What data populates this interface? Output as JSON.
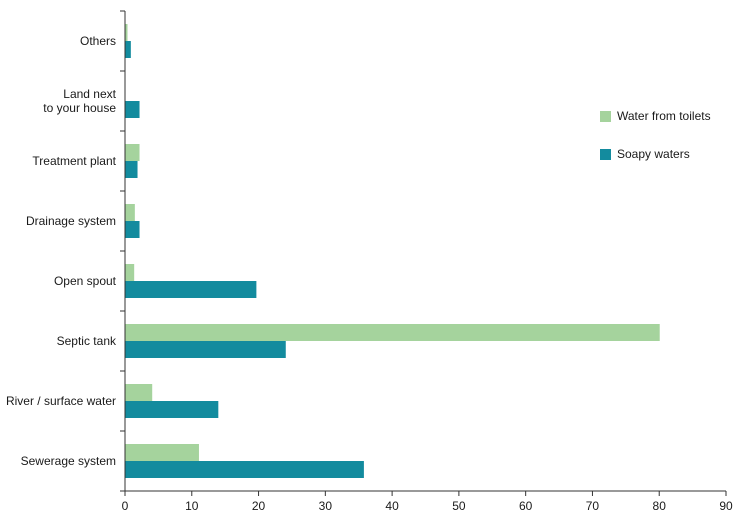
{
  "chart_data": {
    "type": "bar",
    "orientation": "horizontal",
    "categories": [
      "Sewerage system",
      "River / surface water",
      "Septic tank",
      "Open spout",
      "Drainage system",
      "Treatment plant",
      "Land next\nto your house",
      "Others"
    ],
    "series": [
      {
        "name": "Water from toilets",
        "color": "#a5d39d",
        "values": [
          11,
          4,
          80,
          1.3,
          1.4,
          2.1,
          0,
          0.3
        ]
      },
      {
        "name": "Soapy waters",
        "color": "#138b9e",
        "values": [
          35.7,
          13.9,
          24,
          19.6,
          2.1,
          1.8,
          2.1,
          0.8
        ]
      }
    ],
    "xlim": [
      0,
      90
    ],
    "xticks": [
      "0",
      "10",
      "20",
      "30",
      "40",
      "50",
      "60",
      "70",
      "80",
      "90"
    ],
    "grid": false,
    "legend_position": "right",
    "title": "",
    "xlabel": "",
    "ylabel": ""
  }
}
